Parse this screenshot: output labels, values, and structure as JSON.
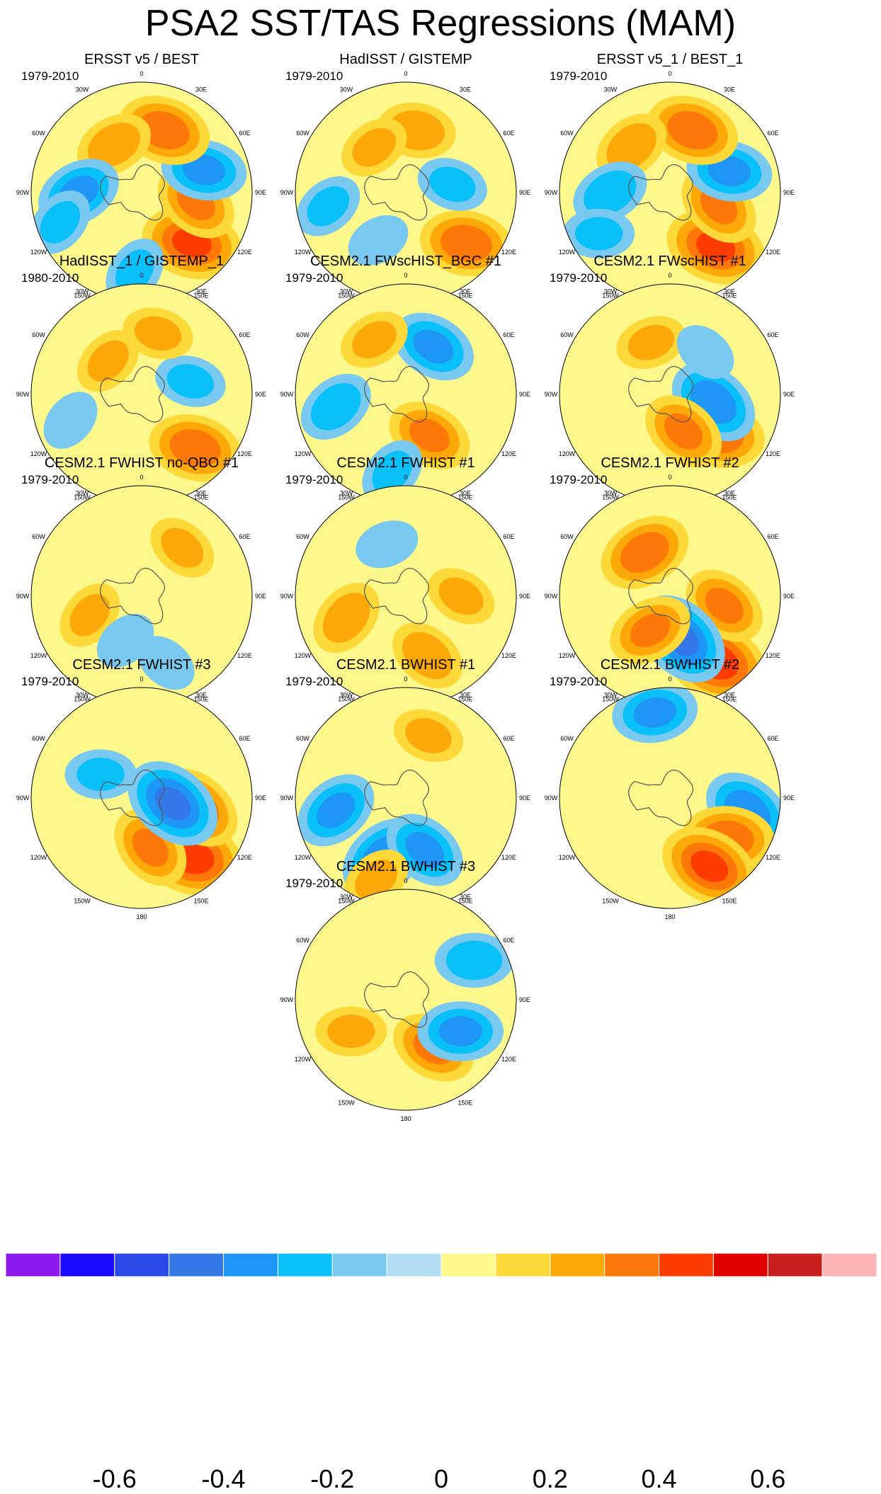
{
  "title": "PSA2 SST/TAS Regressions (MAM)",
  "lon_labels": [
    "0",
    "30E",
    "60E",
    "90E",
    "120E",
    "150E",
    "180",
    "150W",
    "120W",
    "90W",
    "60W",
    "30W"
  ],
  "panels": [
    {
      "title": "ERSST v5 / BEST",
      "years": "1979-2010"
    },
    {
      "title": "HadISST / GISTEMP",
      "years": "1979-2010"
    },
    {
      "title": "ERSST v5_1 / BEST_1",
      "years": "1979-2010"
    },
    {
      "title": "HadISST_1 / GISTEMP_1",
      "years": "1980-2010"
    },
    {
      "title": "CESM2.1 FWscHIST_BGC #1",
      "years": "1979-2010"
    },
    {
      "title": "CESM2.1 FWscHIST #1",
      "years": "1979-2010"
    },
    {
      "title": "CESM2.1 FWHIST no-QBO #1",
      "years": "1979-2010"
    },
    {
      "title": "CESM2.1 FWHIST #1",
      "years": "1979-2010"
    },
    {
      "title": "CESM2.1 FWHIST #2",
      "years": "1979-2010"
    },
    {
      "title": "CESM2.1 FWHIST #3",
      "years": "1979-2010"
    },
    {
      "title": "CESM2.1 BWHIST #1",
      "years": "1979-2010"
    },
    {
      "title": "CESM2.1 BWHIST #2",
      "years": "1979-2010"
    },
    {
      "title": "CESM2.1 BWHIST #3",
      "years": "1979-2010"
    }
  ],
  "colorbar": {
    "colors": [
      "#8c1aec",
      "#1a0aff",
      "#2a4ae8",
      "#3478e8",
      "#1e96f5",
      "#0ac0f8",
      "#78c8f0",
      "#b2dcf2",
      "#fcf88c",
      "#fcd838",
      "#fca808",
      "#fc7808",
      "#fc3c00",
      "#e00000",
      "#c81e1e",
      "#fcb4b4"
    ],
    "tick_labels": [
      "-0.6",
      "-0.4",
      "-0.2",
      "0",
      "0.2",
      "0.4",
      "0.6"
    ]
  },
  "chart_data": {
    "type": "heatmap",
    "title": "PSA2 SST/TAS Regressions (MAM)",
    "projection": "south polar stereographic",
    "contour_levels": [
      -0.7,
      -0.6,
      -0.5,
      -0.4,
      -0.3,
      -0.2,
      -0.1,
      0,
      0.1,
      0.2,
      0.3,
      0.4,
      0.5,
      0.6,
      0.7
    ],
    "value_range": [
      -0.8,
      0.8
    ],
    "colorbar_ticks": [
      -0.6,
      -0.4,
      -0.2,
      0,
      0.2,
      0.4,
      0.6
    ],
    "panels": [
      {
        "name": "ERSST v5 / BEST",
        "years": "1979-2010",
        "features": [
          {
            "lon": 135,
            "lat": -45,
            "value": 0.4
          },
          {
            "lon": 100,
            "lat": -55,
            "value": 0.3
          },
          {
            "lon": 70,
            "lat": -48,
            "value": -0.3
          },
          {
            "lon": 20,
            "lat": -48,
            "value": 0.35
          },
          {
            "lon": -30,
            "lat": -55,
            "value": 0.25
          },
          {
            "lon": -90,
            "lat": -50,
            "value": -0.3
          },
          {
            "lon": -110,
            "lat": -35,
            "value": -0.2
          },
          {
            "lon": -175,
            "lat": -40,
            "value": -0.2
          }
        ]
      },
      {
        "name": "HadISST / GISTEMP",
        "years": "1979-2010",
        "features": [
          {
            "lon": 130,
            "lat": -40,
            "value": 0.35
          },
          {
            "lon": 80,
            "lat": -60,
            "value": -0.2
          },
          {
            "lon": 10,
            "lat": -50,
            "value": 0.25
          },
          {
            "lon": -35,
            "lat": -55,
            "value": 0.2
          },
          {
            "lon": -100,
            "lat": -40,
            "value": -0.2
          },
          {
            "lon": -150,
            "lat": -55,
            "value": -0.15
          }
        ]
      },
      {
        "name": "ERSST v5_1 / BEST_1",
        "years": "1979-2010",
        "features": [
          {
            "lon": 140,
            "lat": -45,
            "value": 0.4
          },
          {
            "lon": 105,
            "lat": -58,
            "value": 0.3
          },
          {
            "lon": 70,
            "lat": -50,
            "value": -0.3
          },
          {
            "lon": 20,
            "lat": -48,
            "value": 0.35
          },
          {
            "lon": -40,
            "lat": -52,
            "value": 0.25
          },
          {
            "lon": -90,
            "lat": -52,
            "value": -0.25
          },
          {
            "lon": -120,
            "lat": -38,
            "value": -0.2
          }
        ]
      },
      {
        "name": "HadISST_1 / GISTEMP_1",
        "years": "1980-2010",
        "features": [
          {
            "lon": 135,
            "lat": -42,
            "value": 0.35
          },
          {
            "lon": 75,
            "lat": -58,
            "value": -0.2
          },
          {
            "lon": 15,
            "lat": -50,
            "value": 0.2
          },
          {
            "lon": -45,
            "lat": -60,
            "value": 0.2
          },
          {
            "lon": -110,
            "lat": -42,
            "value": -0.15
          }
        ]
      },
      {
        "name": "CESM2.1 FWscHIST_BGC #1",
        "years": "1979-2010",
        "features": [
          {
            "lon": 150,
            "lat": -60,
            "value": 0.3
          },
          {
            "lon": 30,
            "lat": -55,
            "value": -0.3
          },
          {
            "lon": -30,
            "lat": -50,
            "value": 0.2
          },
          {
            "lon": -100,
            "lat": -45,
            "value": -0.25
          },
          {
            "lon": -170,
            "lat": -40,
            "value": -0.2
          }
        ]
      },
      {
        "name": "CESM2.1 FWscHIST #1",
        "years": "1979-2010",
        "features": [
          {
            "lon": 130,
            "lat": -50,
            "value": 0.35
          },
          {
            "lon": 100,
            "lat": -62,
            "value": -0.35
          },
          {
            "lon": 160,
            "lat": -65,
            "value": 0.3
          },
          {
            "lon": -20,
            "lat": -55,
            "value": 0.2
          },
          {
            "lon": 40,
            "lat": -55,
            "value": -0.15
          }
        ]
      },
      {
        "name": "CESM2.1 FWHIST no-QBO #1",
        "years": "1979-2010",
        "features": [
          {
            "lon": -110,
            "lat": -55,
            "value": 0.2
          },
          {
            "lon": 40,
            "lat": -50,
            "value": 0.2
          },
          {
            "lon": 160,
            "lat": -45,
            "value": -0.15
          },
          {
            "lon": -160,
            "lat": -60,
            "value": -0.15
          }
        ]
      },
      {
        "name": "CESM2.1 FWHIST #1",
        "years": "1979-2010",
        "features": [
          {
            "lon": 160,
            "lat": -50,
            "value": 0.25
          },
          {
            "lon": -110,
            "lat": -50,
            "value": 0.25
          },
          {
            "lon": 90,
            "lat": -55,
            "value": 0.2
          },
          {
            "lon": -20,
            "lat": -55,
            "value": -0.15
          }
        ]
      },
      {
        "name": "CESM2.1 FWHIST #2",
        "years": "1979-2010",
        "features": [
          {
            "lon": 145,
            "lat": -40,
            "value": 0.45
          },
          {
            "lon": 100,
            "lat": -55,
            "value": 0.3
          },
          {
            "lon": 165,
            "lat": -62,
            "value": -0.4
          },
          {
            "lon": -150,
            "lat": -65,
            "value": 0.3
          },
          {
            "lon": -30,
            "lat": -58,
            "value": 0.35
          }
        ]
      },
      {
        "name": "CESM2.1 FWHIST #3",
        "years": "1979-2010",
        "features": [
          {
            "lon": 140,
            "lat": -42,
            "value": 0.45
          },
          {
            "lon": 100,
            "lat": -55,
            "value": 0.35
          },
          {
            "lon": 170,
            "lat": -58,
            "value": 0.3
          },
          {
            "lon": 100,
            "lat": -70,
            "value": -0.4
          },
          {
            "lon": -60,
            "lat": -60,
            "value": -0.2
          }
        ]
      },
      {
        "name": "CESM2.1 BWHIST #1",
        "years": "1979-2010",
        "features": [
          {
            "lon": -160,
            "lat": -50,
            "value": -0.35
          },
          {
            "lon": -100,
            "lat": -45,
            "value": -0.3
          },
          {
            "lon": 160,
            "lat": -55,
            "value": -0.3
          },
          {
            "lon": -160,
            "lat": -35,
            "value": 0.2
          },
          {
            "lon": 20,
            "lat": -48,
            "value": 0.2
          }
        ]
      },
      {
        "name": "CESM2.1 BWHIST #2",
        "years": "1979-2010",
        "features": [
          {
            "lon": 100,
            "lat": -40,
            "value": -0.35
          },
          {
            "lon": 125,
            "lat": -45,
            "value": 0.35
          },
          {
            "lon": 150,
            "lat": -40,
            "value": 0.4
          },
          {
            "lon": -10,
            "lat": -35,
            "value": -0.3
          }
        ]
      },
      {
        "name": "CESM2.1 BWHIST #3",
        "years": "1979-2010",
        "features": [
          {
            "lon": 150,
            "lat": -55,
            "value": 0.3
          },
          {
            "lon": 120,
            "lat": -50,
            "value": -0.3
          },
          {
            "lon": 60,
            "lat": -40,
            "value": -0.25
          },
          {
            "lon": -120,
            "lat": -50,
            "value": 0.2
          }
        ]
      }
    ]
  }
}
